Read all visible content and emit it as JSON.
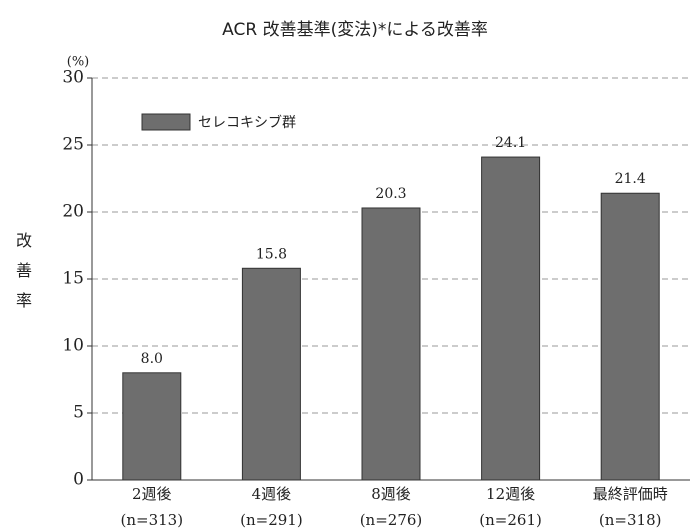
{
  "chart_data": {
    "type": "bar",
    "title": "ACR 改善基準(変法)*による改善率",
    "y_unit": "(%)",
    "y_label": "改善率",
    "categories": [
      "2週後",
      "4週後",
      "8週後",
      "12週後",
      "最終評価時"
    ],
    "sample_sizes": [
      "(n=313)",
      "(n=291)",
      "(n=276)",
      "(n=261)",
      "(n=318)"
    ],
    "series": [
      {
        "name": "セレコキシブ群",
        "color": "#6e6e6e",
        "values": [
          8.0,
          15.8,
          20.3,
          24.1,
          21.4
        ],
        "value_labels": [
          "8.0",
          "15.8",
          "20.3",
          "24.1",
          "21.4"
        ]
      }
    ],
    "ylim": [
      0,
      30
    ],
    "yticks": [
      0,
      5,
      10,
      15,
      20,
      25,
      30
    ],
    "grid": true
  }
}
